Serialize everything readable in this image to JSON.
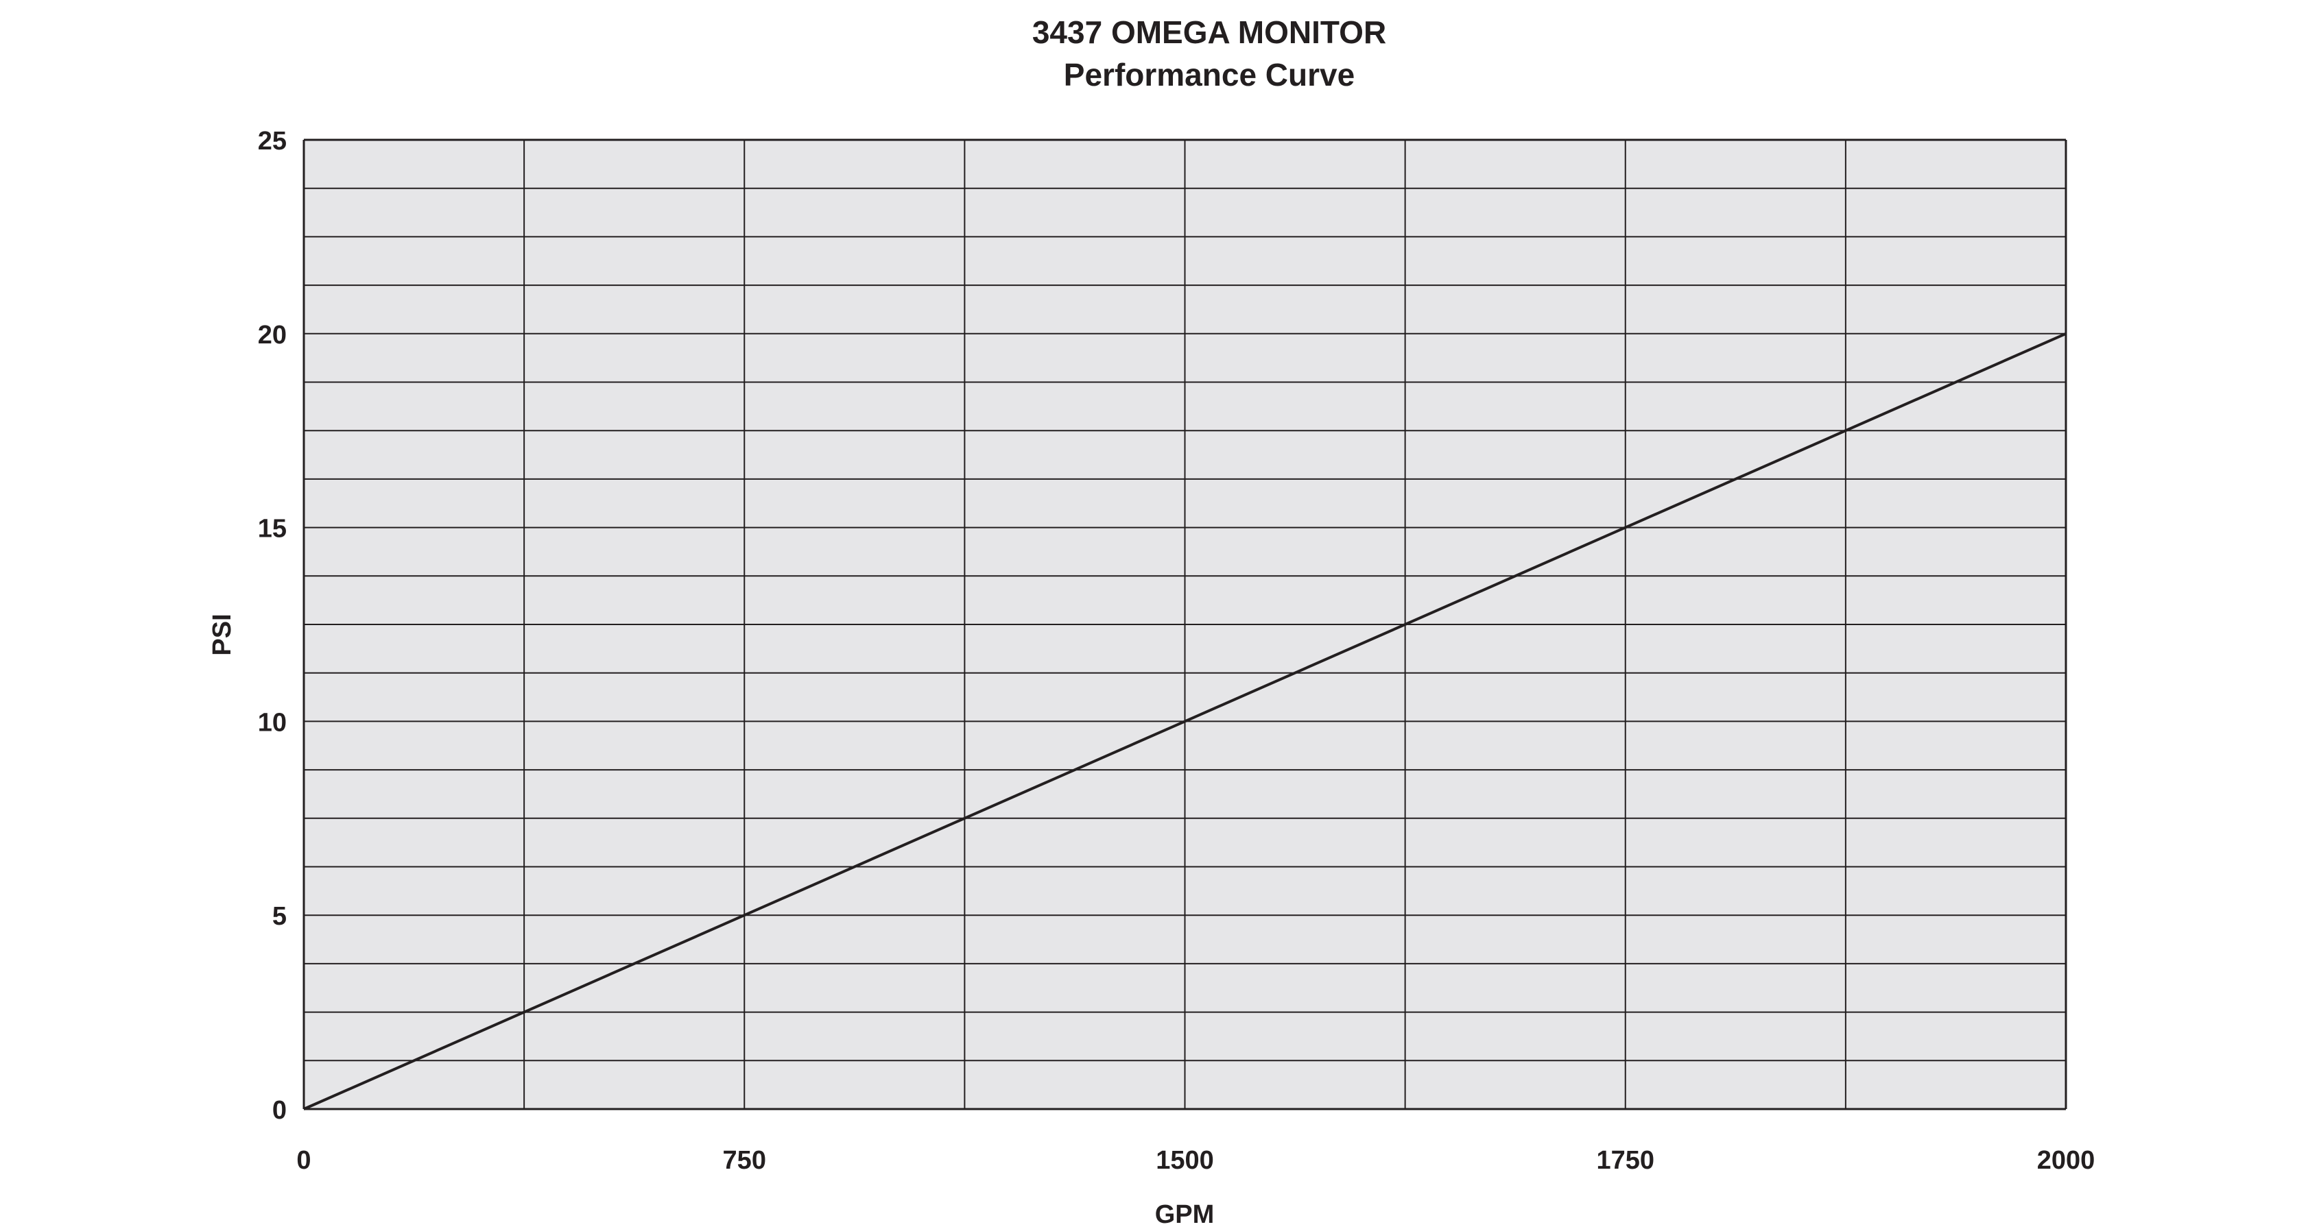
{
  "chart_data": {
    "type": "line",
    "title": "3437 OMEGA MONITOR",
    "subtitle": "Performance Curve",
    "xlabel": "GPM",
    "ylabel": "PSI",
    "x_tick_labels": [
      "0",
      "750",
      "1500",
      "1750",
      "2000"
    ],
    "y_tick_labels": [
      "0",
      "5",
      "10",
      "15",
      "20",
      "25"
    ],
    "ylim": [
      0,
      25
    ],
    "x_gridlines": 8,
    "y_gridlines": 20,
    "grid": true,
    "plot_background": "#e6e6e8",
    "line_color": "#231f20",
    "series": [
      {
        "x": [
          "0",
          "750",
          "1500",
          "1750",
          "2000"
        ],
        "values": [
          0,
          5,
          10,
          15,
          20
        ]
      }
    ]
  }
}
